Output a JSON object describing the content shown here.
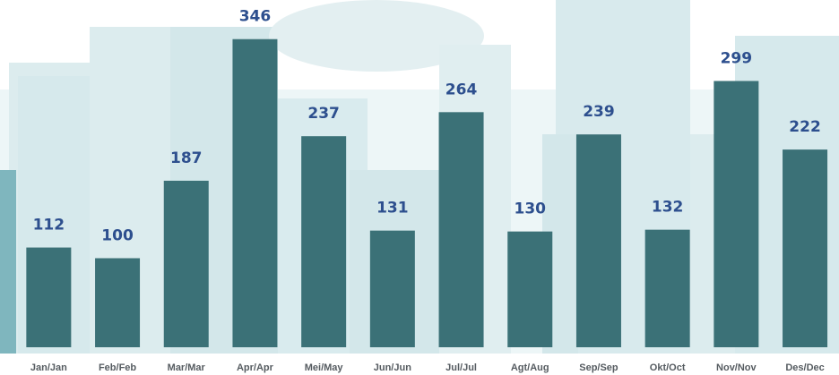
{
  "chart_data": {
    "type": "bar",
    "categories": [
      "Jan/Jan",
      "Feb/Feb",
      "Mar/Mar",
      "Apr/Apr",
      "Mei/May",
      "Jun/Jun",
      "Jul/Jul",
      "Agt/Aug",
      "Sep/Sep",
      "Okt/Oct",
      "Nov/Nov",
      "Des/Dec"
    ],
    "values": [
      112,
      100,
      187,
      346,
      237,
      131,
      264,
      130,
      239,
      132,
      299,
      222
    ],
    "color": "#3b7177",
    "label_color": "#2d4f8e"
  }
}
